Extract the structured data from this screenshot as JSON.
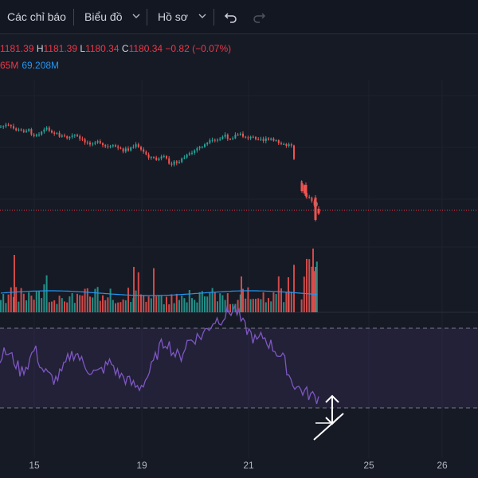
{
  "toolbar": {
    "indicators_label": "Các chỉ báo",
    "chart_label": "Biểu đồ",
    "profile_label": "Hồ sơ"
  },
  "legend": {
    "open_value": "1181.39",
    "high_label": "H",
    "high_value": "1181.39",
    "low_label": "L",
    "low_value": "1180.34",
    "close_label": "C",
    "close_value": "1180.34",
    "change_text": "−0.82 (−0.07%)",
    "volume_value": "65M",
    "volume_ma_value": "69.208M"
  },
  "colors": {
    "up": "#26a69a",
    "down": "#ef5350",
    "rsi_line": "#7e57c2",
    "volume_ma": "#2196f3",
    "price_line": "#f23645",
    "background": "#161a25"
  },
  "x_axis": {
    "labels": [
      "15",
      "19",
      "21",
      "25",
      "26"
    ]
  },
  "chart_data": {
    "type": "line",
    "series": [
      {
        "values": [
          1204.1,
          1204.3,
          1203.9,
          1203.6,
          1203.8,
          1203.2,
          1203.5,
          1204.0,
          1203.4,
          1203.0,
          1202.8,
          1203.1,
          1202.5,
          1202.2,
          1202.4,
          1201.9,
          1201.6,
          1201.8,
          1201.3,
          1201.5,
          1201.9,
          1201.2,
          1200.6,
          1200.2,
          1200.5,
          1199.9,
          1199.7,
          1200.4,
          1200.8,
          1201.5,
          1201.9,
          1202.3,
          1202.5,
          1203.0,
          1202.8,
          1203.2,
          1203.0,
          1202.8,
          1202.9,
          1202.5,
          1202.6,
          1202.2,
          1201.9,
          1202.0,
          1197.8,
          1196.2,
          1195.0,
          1194.8
        ]
      },
      {
        "values": [
          56,
          58,
          54,
          48,
          52,
          60,
          50,
          46,
          44,
          48,
          56,
          58,
          52,
          49,
          47,
          50,
          53,
          47,
          45,
          42,
          40,
          44,
          51,
          60,
          64,
          58,
          55,
          63,
          65,
          66,
          70,
          74,
          75,
          78,
          80,
          72,
          68,
          63,
          66,
          62,
          58,
          54,
          44,
          40,
          38,
          36,
          35
        ]
      }
    ]
  }
}
